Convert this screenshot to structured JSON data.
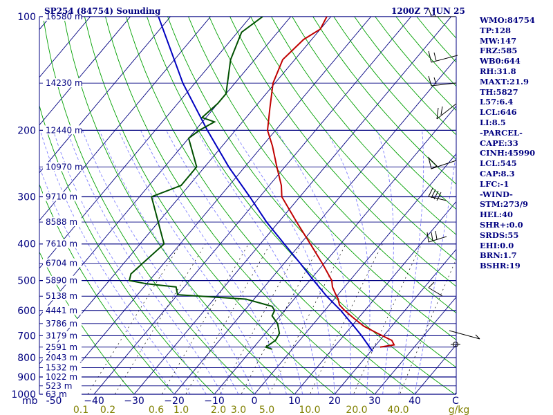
{
  "chart_data": {
    "type": "skew-t",
    "title_left": "SP254 (84754) Sounding",
    "title_right": "1200Z  7 JUN 25",
    "pressure_levels": [
      100,
      150,
      200,
      250,
      300,
      350,
      400,
      450,
      500,
      550,
      600,
      650,
      700,
      750,
      800,
      850,
      900,
      950,
      1000
    ],
    "pressure_labels": [
      "100",
      "200",
      "300",
      "400",
      "500",
      "600",
      "700",
      "800",
      "900",
      "1000"
    ],
    "height_labels": [
      {
        "p": 100,
        "h": "16580 m"
      },
      {
        "p": 150,
        "h": "14230 m"
      },
      {
        "p": 200,
        "h": "12440 m"
      },
      {
        "p": 250,
        "h": "10970 m"
      },
      {
        "p": 300,
        "h": "9710 m"
      },
      {
        "p": 350,
        "h": "8588 m"
      },
      {
        "p": 400,
        "h": "7610 m"
      },
      {
        "p": 450,
        "h": "6704 m"
      },
      {
        "p": 500,
        "h": "5890 m"
      },
      {
        "p": 550,
        "h": "5138 m"
      },
      {
        "p": 600,
        "h": "4441 m"
      },
      {
        "p": 650,
        "h": "3786 m"
      },
      {
        "p": 700,
        "h": "3179 m"
      },
      {
        "p": 750,
        "h": "2591 m"
      },
      {
        "p": 800,
        "h": "2043 m"
      },
      {
        "p": 850,
        "h": "1532 m"
      },
      {
        "p": 900,
        "h": "1022 m"
      },
      {
        "p": 950,
        "h": "523 m"
      },
      {
        "p": 1000,
        "h": "63 m"
      }
    ],
    "pressure_unit": "mb",
    "temperature_ticks": [
      -50,
      -40,
      -30,
      -20,
      -10,
      0,
      10,
      20,
      30,
      40
    ],
    "temperature_tick_labels": [
      "-50",
      "−40",
      "−30",
      "−20",
      "−10",
      "0",
      "10",
      "20",
      "30",
      "40"
    ],
    "temperature_unit": "C",
    "mixing_ratio_labels": [
      "0.1",
      "0.2",
      "0.6",
      "1.0",
      "2.0",
      "3.0",
      "5.0",
      "10.0",
      "20.0",
      "40.0"
    ],
    "mixing_ratio_unit": "g/kg",
    "temperature_profile": [
      {
        "p": 750,
        "t": 21.5
      },
      {
        "p": 740,
        "t": 24.5
      },
      {
        "p": 720,
        "t": 23
      },
      {
        "p": 690,
        "t": 18
      },
      {
        "p": 660,
        "t": 13
      },
      {
        "p": 630,
        "t": 9
      },
      {
        "p": 600,
        "t": 5
      },
      {
        "p": 580,
        "t": 2.5
      },
      {
        "p": 560,
        "t": 1
      },
      {
        "p": 540,
        "t": -1
      },
      {
        "p": 520,
        "t": -3
      },
      {
        "p": 500,
        "t": -4.5
      },
      {
        "p": 450,
        "t": -10.5
      },
      {
        "p": 400,
        "t": -17.5
      },
      {
        "p": 350,
        "t": -25.5
      },
      {
        "p": 300,
        "t": -34.5
      },
      {
        "p": 280,
        "t": -37
      },
      {
        "p": 250,
        "t": -42
      },
      {
        "p": 220,
        "t": -47.5
      },
      {
        "p": 200,
        "t": -52
      },
      {
        "p": 175,
        "t": -56
      },
      {
        "p": 150,
        "t": -60.5
      },
      {
        "p": 130,
        "t": -63
      },
      {
        "p": 115,
        "t": -62
      },
      {
        "p": 108,
        "t": -60
      },
      {
        "p": 100,
        "t": -61
      }
    ],
    "dewpoint_profile": [
      {
        "p": 760,
        "t": -5
      },
      {
        "p": 750,
        "t": -7
      },
      {
        "p": 720,
        "t": -6
      },
      {
        "p": 690,
        "t": -6.5
      },
      {
        "p": 650,
        "t": -9
      },
      {
        "p": 620,
        "t": -12
      },
      {
        "p": 600,
        "t": -12.5
      },
      {
        "p": 585,
        "t": -14
      },
      {
        "p": 560,
        "t": -22
      },
      {
        "p": 545,
        "t": -40
      },
      {
        "p": 520,
        "t": -42
      },
      {
        "p": 510,
        "t": -50
      },
      {
        "p": 500,
        "t": -55
      },
      {
        "p": 480,
        "t": -56
      },
      {
        "p": 400,
        "t": -54
      },
      {
        "p": 300,
        "t": -67
      },
      {
        "p": 280,
        "t": -62
      },
      {
        "p": 250,
        "t": -62
      },
      {
        "p": 210,
        "t": -70
      },
      {
        "p": 200,
        "t": -69
      },
      {
        "p": 190,
        "t": -67
      },
      {
        "p": 185,
        "t": -71
      },
      {
        "p": 170,
        "t": -70
      },
      {
        "p": 160,
        "t": -70
      },
      {
        "p": 130,
        "t": -76
      },
      {
        "p": 110,
        "t": -79
      },
      {
        "p": 100,
        "t": -77
      }
    ],
    "parcel_trace": [
      {
        "p": 770,
        "t": 20.5
      },
      {
        "p": 700,
        "t": 14.5
      },
      {
        "p": 650,
        "t": 9.5
      },
      {
        "p": 600,
        "t": 4
      },
      {
        "p": 550,
        "t": -2.5
      },
      {
        "p": 500,
        "t": -9
      },
      {
        "p": 450,
        "t": -16
      },
      {
        "p": 400,
        "t": -24
      },
      {
        "p": 350,
        "t": -33
      },
      {
        "p": 300,
        "t": -42.5
      },
      {
        "p": 250,
        "t": -54
      },
      {
        "p": 200,
        "t": -67
      },
      {
        "p": 150,
        "t": -83
      },
      {
        "p": 100,
        "t": -103
      }
    ],
    "indices": [
      "WMO:84754",
      "TP:128",
      "MW:147",
      "FRZ:585",
      "WB0:644",
      "RH:31.8",
      "MAXT:21.9",
      "TH:5827",
      "L57:6.4",
      "LCL:646",
      "LI:8.5",
      "-PARCEL-",
      "CAPE:33",
      "CINH:45990",
      "LCL:545",
      "CAP:8.3",
      "LFC:-1",
      "-WIND-",
      "STM:273/9",
      "HEL:40",
      "SHR+:0.0",
      "SRDS:55",
      "EHI:0.0",
      "BRN:1.7",
      "BSHR:19"
    ],
    "colors": {
      "isobar": "#000080",
      "isotherm": "#000080",
      "dry_adiabat": "#00a000",
      "moist_adiabat": "#8080ff",
      "mixing_ratio": "#000000",
      "temperature": "#c00000",
      "dewpoint": "#005000",
      "parcel": "#0000c0",
      "labels": "#000080",
      "mixing_labels": "#808000"
    }
  }
}
